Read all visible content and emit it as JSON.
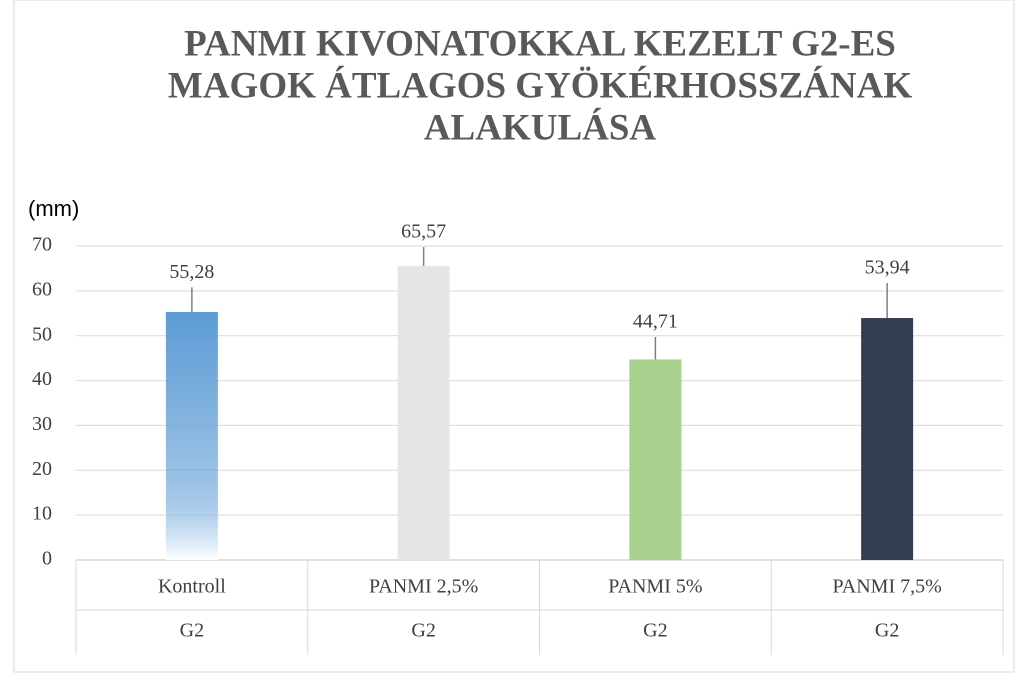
{
  "chart_data": {
    "type": "bar",
    "title": [
      "PANMI KIVONATOKKAL KEZELT G2-ES",
      "MAGOK ÁTLAGOS GYÖKÉRHOSSZÁNAK",
      "ALAKULÁSA"
    ],
    "y_label": "(mm)",
    "categories": [
      "Kontroll",
      "PANMI 2,5%",
      "PANMI 5%",
      "PANMI 7,5%"
    ],
    "group_labels": [
      "G2",
      "G2",
      "G2",
      "G2"
    ],
    "values": [
      55.28,
      65.57,
      44.71,
      53.94
    ],
    "value_labels": [
      "55,28",
      "65,57",
      "44,71",
      "53,94"
    ],
    "errors": [
      5.5,
      4.2,
      5,
      7.8
    ],
    "colors": [
      "#5b9bd5",
      "#e7e6e6",
      "#a9d18e",
      "#333f50"
    ],
    "fade": [
      true,
      false,
      false,
      false
    ],
    "ylim": [
      0,
      70
    ],
    "yticks": [
      0,
      10,
      20,
      30,
      40,
      50,
      60,
      70
    ],
    "grid": true
  }
}
